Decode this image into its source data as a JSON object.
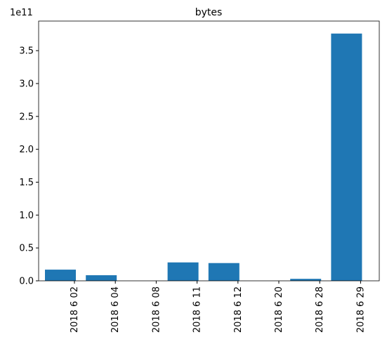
{
  "chart_data": {
    "type": "bar",
    "title": "bytes",
    "offset_label": "1e11",
    "categories": [
      "2018 6 02",
      "2018 6 04",
      "2018 6 08",
      "2018 6 11",
      "2018 6 12",
      "2018 6 20",
      "2018 6 28",
      "2018 6 29"
    ],
    "values": [
      0.17,
      0.085,
      0,
      0.28,
      0.27,
      0,
      0.03,
      3.76
    ],
    "color": "#1f77b4",
    "ylim": [
      0,
      3.95
    ],
    "yticks": [
      {
        "value": 0,
        "label": "0.0"
      },
      0.5,
      {
        "value": 1,
        "label": "1.0"
      },
      1.5,
      {
        "value": 2,
        "label": "2.0"
      },
      2.5,
      {
        "value": 3,
        "label": "3.0"
      },
      3.5
    ],
    "grid": false
  }
}
